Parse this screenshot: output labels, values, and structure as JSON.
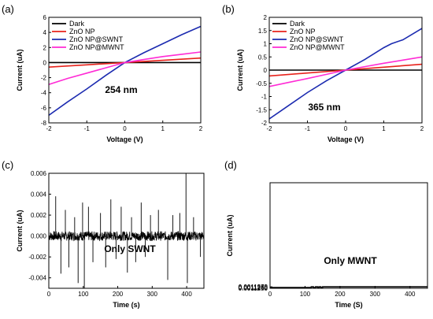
{
  "chart_data": [
    {
      "panel": "(a)",
      "type": "line",
      "xlabel": "Voltage (V)",
      "ylabel": "Current (uA)",
      "xlim": [
        -2,
        2
      ],
      "ylim": [
        -8,
        6
      ],
      "xticks": [
        -2,
        -1,
        0,
        1,
        2
      ],
      "yticks": [
        -8,
        -6,
        -4,
        -2,
        0,
        2,
        4,
        6
      ],
      "annotation": "254 nm",
      "legend": "top-left",
      "series": [
        {
          "name": "Dark",
          "color": "#000000",
          "x": [
            -2,
            0,
            2
          ],
          "y": [
            0,
            0,
            0
          ]
        },
        {
          "name": "ZnO NP",
          "color": "#e8221b",
          "x": [
            -2,
            -1,
            0,
            1,
            2
          ],
          "y": [
            -0.6,
            -0.3,
            0,
            0.3,
            0.6
          ]
        },
        {
          "name": "ZnO NP@SWNT",
          "color": "#1c2bb0",
          "x": [
            -2,
            -1.5,
            -1,
            -0.5,
            0,
            0.5,
            1,
            1.5,
            2
          ],
          "y": [
            -7.0,
            -5.2,
            -3.5,
            -1.7,
            0,
            1.3,
            2.5,
            3.7,
            4.8
          ]
        },
        {
          "name": "ZnO NP@MWNT",
          "color": "#ff2bd5",
          "x": [
            -2,
            -1.5,
            -1,
            -0.5,
            0,
            0.5,
            1,
            1.5,
            2
          ],
          "y": [
            -2.9,
            -2.1,
            -1.4,
            -0.7,
            0,
            0.4,
            0.8,
            1.1,
            1.4
          ]
        }
      ]
    },
    {
      "panel": "(b)",
      "type": "line",
      "xlabel": "Voltage (V)",
      "ylabel": "Current (uA)",
      "xlim": [
        -2,
        2
      ],
      "ylim": [
        -2.0,
        2.0
      ],
      "xticks": [
        -2,
        -1,
        0,
        1,
        2
      ],
      "yticks": [
        -2.0,
        -1.5,
        -1.0,
        -0.5,
        0.0,
        0.5,
        1.0,
        1.5,
        2.0
      ],
      "annotation": "365 nm",
      "legend": "top-left",
      "series": [
        {
          "name": "Dark",
          "color": "#000000",
          "x": [
            -2,
            0,
            2
          ],
          "y": [
            0,
            0,
            0
          ]
        },
        {
          "name": "ZnO NP",
          "color": "#e8221b",
          "x": [
            -2,
            -1,
            0,
            1,
            2
          ],
          "y": [
            -0.22,
            -0.11,
            0,
            0.11,
            0.22
          ]
        },
        {
          "name": "ZnO NP@SWNT",
          "color": "#1c2bb0",
          "x": [
            -2,
            -1.5,
            -1,
            -0.5,
            0,
            0.5,
            1,
            1.2,
            1.5,
            2
          ],
          "y": [
            -1.85,
            -1.35,
            -0.85,
            -0.4,
            0,
            0.4,
            0.85,
            1.0,
            1.15,
            1.58
          ]
        },
        {
          "name": "ZnO NP@MWNT",
          "color": "#ff2bd5",
          "x": [
            -2,
            -1.5,
            -1,
            -0.5,
            0,
            0.5,
            1,
            1.5,
            2
          ],
          "y": [
            -0.62,
            -0.47,
            -0.32,
            -0.16,
            0,
            0.13,
            0.26,
            0.38,
            0.5
          ]
        }
      ]
    },
    {
      "panel": "(c)",
      "type": "line",
      "xlabel": "Time (s)",
      "ylabel": "Current (uA)",
      "xlim": [
        0,
        450
      ],
      "ylim": [
        -0.005,
        0.006
      ],
      "xticks": [
        0,
        100,
        200,
        300,
        400
      ],
      "yticks": [
        -0.004,
        -0.002,
        0.0,
        0.002,
        0.004,
        0.006
      ],
      "ytick_labels": [
        "-0.004",
        "-0.002",
        "0.000",
        "0.002",
        "0.004",
        "0.006"
      ],
      "annotation": "Only SWNT",
      "series": [
        {
          "color": "#000000",
          "spikes": [
            [
              20,
              0.0038
            ],
            [
              35,
              -0.0036
            ],
            [
              48,
              0.0025
            ],
            [
              58,
              -0.003
            ],
            [
              75,
              0.0018
            ],
            [
              85,
              -0.0045
            ],
            [
              98,
              0.0032
            ],
            [
              103,
              -0.005
            ],
            [
              115,
              0.0028
            ],
            [
              128,
              -0.0025
            ],
            [
              150,
              0.0022
            ],
            [
              165,
              -0.003
            ],
            [
              180,
              0.0035
            ],
            [
              195,
              -0.0022
            ],
            [
              210,
              0.0028
            ],
            [
              228,
              -0.0035
            ],
            [
              240,
              0.0018
            ],
            [
              252,
              -0.0025
            ],
            [
              268,
              0.0032
            ],
            [
              280,
              -0.002
            ],
            [
              295,
              0.002
            ],
            [
              318,
              0.0025
            ],
            [
              345,
              -0.0042
            ],
            [
              360,
              0.002
            ],
            [
              380,
              0.0022
            ],
            [
              398,
              0.006
            ],
            [
              402,
              -0.0045
            ],
            [
              420,
              0.0018
            ],
            [
              440,
              -0.002
            ]
          ]
        }
      ]
    },
    {
      "panel": "(d)",
      "type": "line",
      "xlabel": "Time (S)",
      "ylabel": "Current (uA)",
      "xlim": [
        0,
        450
      ],
      "ylim": [
        0.001125,
        0.001272
      ],
      "xticks": [
        0,
        100,
        200,
        300,
        400
      ],
      "yticks": [
        0.001125,
        0.001126,
        0.0011265,
        0.001127
      ],
      "ytick_labels": [
        "0.0011250",
        "0.0011260",
        "0.0011265",
        "0.0011270"
      ],
      "annotation": "Only MWNT",
      "series": [
        {
          "color": "#000000",
          "x": [
            0,
            0,
            118,
            118,
            124,
            124,
            130,
            130,
            136,
            136,
            140,
            140,
            145,
            145,
            150,
            150,
            450
          ],
          "y": [
            0.001125,
            0.001126,
            0.001126,
            0.001127,
            0.001127,
            0.001126,
            0.001126,
            0.001127,
            0.001127,
            0.001126,
            0.001126,
            0.001127,
            0.001127,
            0.001126,
            0.001126,
            0.001127,
            0.001127
          ]
        }
      ]
    }
  ]
}
